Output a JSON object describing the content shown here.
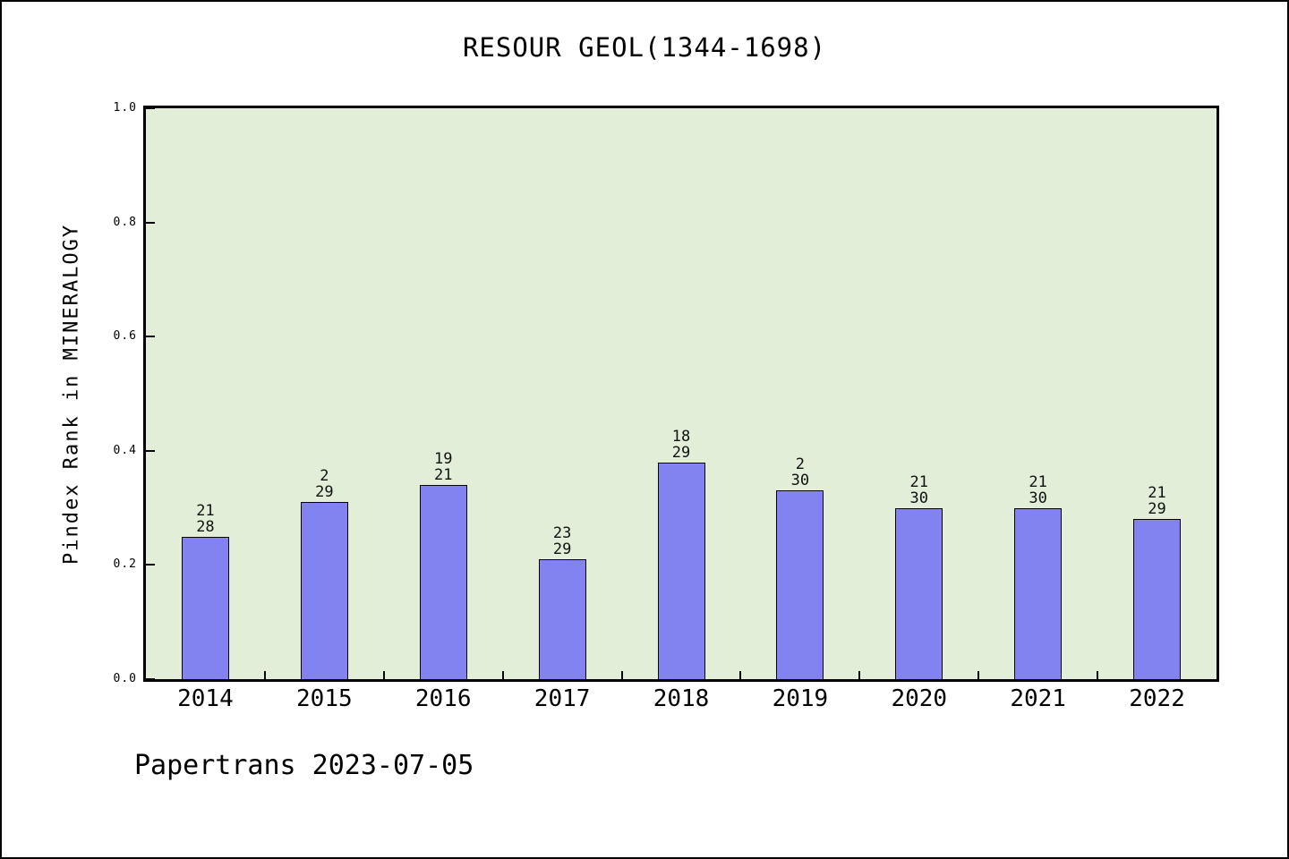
{
  "chart_data": {
    "type": "bar",
    "title": "RESOUR GEOL(1344-1698)",
    "xlabel": "",
    "ylabel": "Pindex Rank in MINERALOGY",
    "categories": [
      "2014",
      "2015",
      "2016",
      "2017",
      "2018",
      "2019",
      "2020",
      "2021",
      "2022"
    ],
    "values": [
      0.25,
      0.31,
      0.34,
      0.21,
      0.38,
      0.33,
      0.3,
      0.3,
      0.28
    ],
    "bar_labels": [
      [
        "21",
        "28"
      ],
      [
        "2",
        "29"
      ],
      [
        "19",
        "21"
      ],
      [
        "23",
        "29"
      ],
      [
        "18",
        "29"
      ],
      [
        "2",
        "30"
      ],
      [
        "21",
        "30"
      ],
      [
        "21",
        "30"
      ],
      [
        "21",
        "29"
      ]
    ],
    "ylim": [
      0,
      1
    ],
    "yticks": [
      0.0,
      0.2,
      0.4,
      0.6,
      0.8,
      1.0
    ],
    "ytick_labels": [
      "0.0",
      "0.2",
      "0.4",
      "0.6",
      "0.8",
      "1.0"
    ],
    "grid": false,
    "legend": null,
    "annotation": "Papertrans 2023-07-05",
    "colors": {
      "bar_fill": "#8282f0",
      "bar_edge": "#000000",
      "plot_background": "#e2eed8",
      "page_background": "#ffffff",
      "text": "#000000"
    }
  }
}
